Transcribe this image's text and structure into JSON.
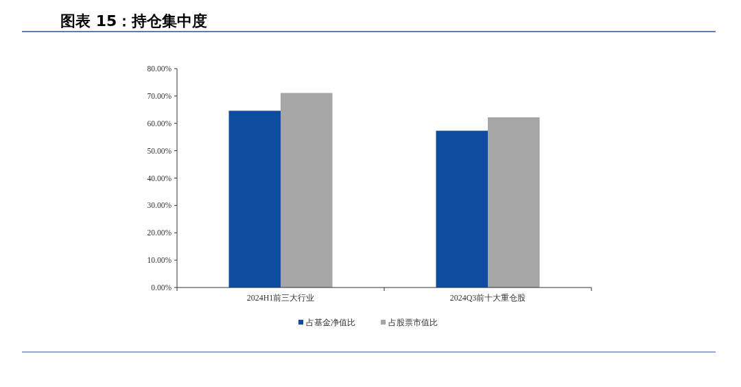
{
  "chart_data": {
    "type": "bar",
    "title": "图表 15：持仓集中度",
    "categories": [
      "2024H1前三大行业",
      "2024Q3前十大重仓股"
    ],
    "series": [
      {
        "name": "占基金净值比",
        "color": "#0d4c9f",
        "values": [
          64.6,
          57.3
        ]
      },
      {
        "name": "占股票市值比",
        "color": "#a6a6a6",
        "values": [
          71.1,
          62.2
        ]
      }
    ],
    "ylim": [
      0,
      80
    ],
    "yticks": [
      {
        "value": 0,
        "label": "0.00%"
      },
      {
        "value": 10,
        "label": "10.00%"
      },
      {
        "value": 20,
        "label": "20.00%"
      },
      {
        "value": 30,
        "label": "30.00%"
      },
      {
        "value": 40,
        "label": "40.00%"
      },
      {
        "value": 50,
        "label": "50.00%"
      },
      {
        "value": 60,
        "label": "60.00%"
      },
      {
        "value": 70,
        "label": "70.00%"
      },
      {
        "value": 80,
        "label": "80.00%"
      }
    ],
    "grid": false,
    "legend": "bottom"
  }
}
